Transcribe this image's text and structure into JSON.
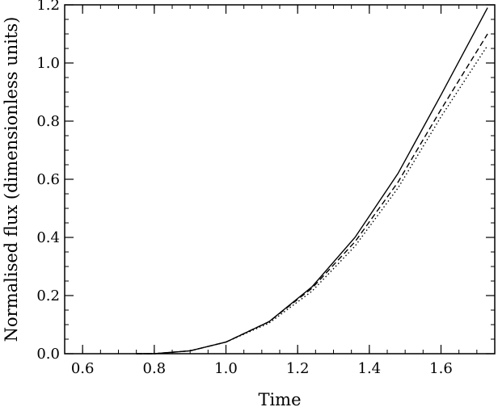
{
  "chart_data": {
    "type": "line",
    "title": "",
    "xlabel": "Time",
    "ylabel": "Normalised flux (dimensionless units)",
    "xlim": [
      0.55,
      1.75
    ],
    "ylim": [
      0.0,
      1.2
    ],
    "xticks": [
      0.6,
      0.8,
      1.0,
      1.2,
      1.4,
      1.6
    ],
    "yticks": [
      0.0,
      0.2,
      0.4,
      0.6,
      0.8,
      1.0,
      1.2
    ],
    "xtick_labels": [
      "0.6",
      "0.8",
      "1.0",
      "1.2",
      "1.4",
      "1.6"
    ],
    "ytick_labels": [
      "0.0",
      "0.2",
      "0.4",
      "0.6",
      "0.8",
      "1.0",
      "1.2"
    ],
    "grid": false,
    "legend": "none",
    "series": [
      {
        "style": "solid",
        "x": [
          0.75,
          0.8,
          0.9,
          1.0,
          1.12,
          1.24,
          1.36,
          1.48,
          1.6,
          1.73
        ],
        "y": [
          -0.01,
          -0.005,
          0.01,
          0.04,
          0.11,
          0.23,
          0.4,
          0.62,
          0.89,
          1.19
        ]
      },
      {
        "style": "dashed",
        "x": [
          0.75,
          0.8,
          0.9,
          1.0,
          1.12,
          1.24,
          1.36,
          1.48,
          1.6,
          1.73
        ],
        "y": [
          -0.01,
          -0.005,
          0.01,
          0.04,
          0.11,
          0.225,
          0.385,
          0.59,
          0.84,
          1.1
        ]
      },
      {
        "style": "dotted",
        "x": [
          0.75,
          0.8,
          0.9,
          1.0,
          1.12,
          1.24,
          1.36,
          1.48,
          1.6,
          1.73
        ],
        "y": [
          -0.01,
          -0.005,
          0.01,
          0.04,
          0.105,
          0.215,
          0.37,
          0.57,
          0.815,
          1.06
        ]
      }
    ]
  }
}
